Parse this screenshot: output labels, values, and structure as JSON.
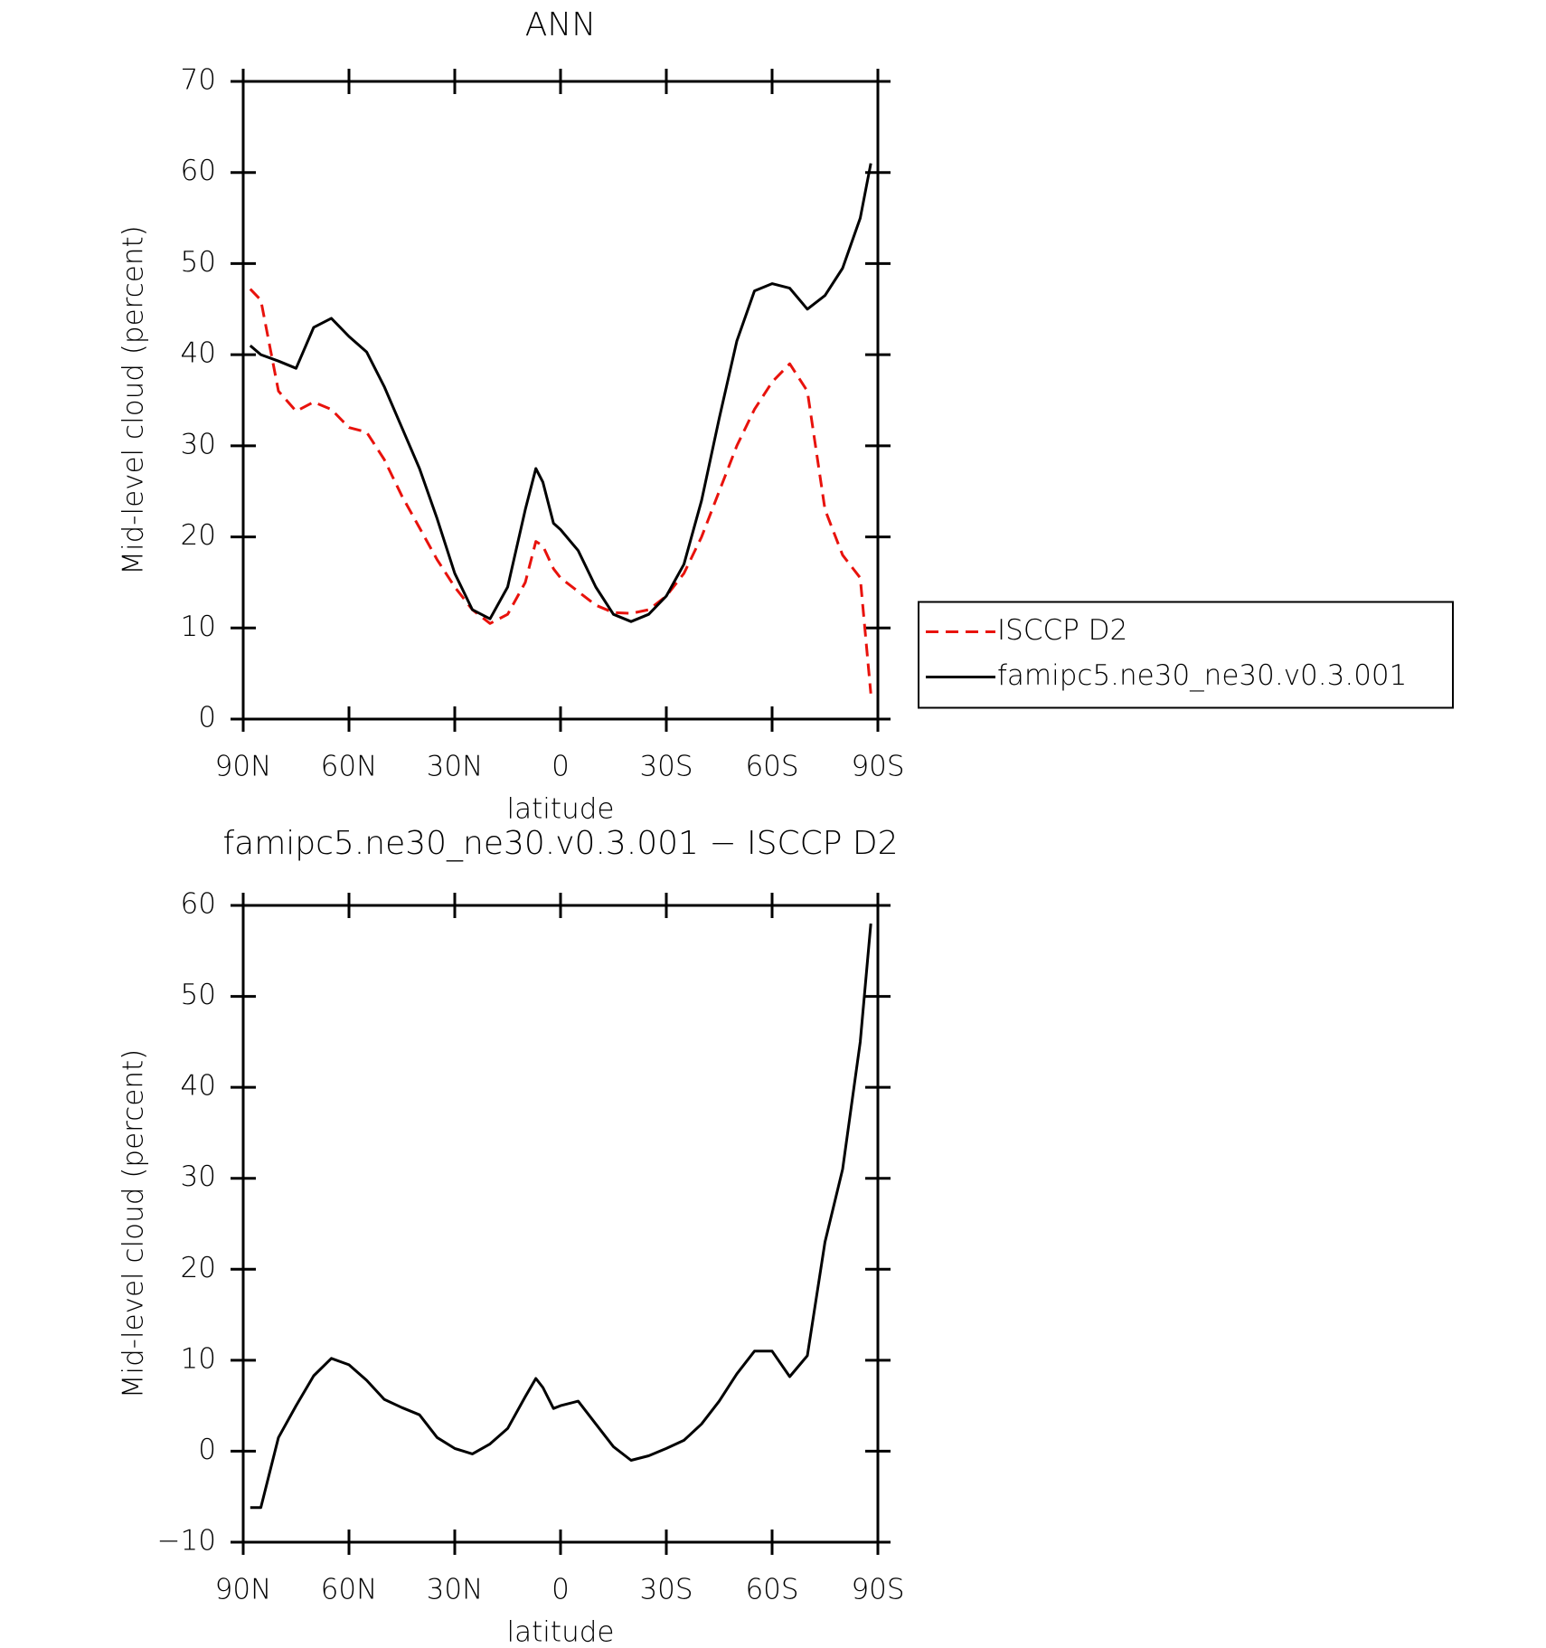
{
  "chart_data": [
    {
      "type": "line",
      "title": "ANN",
      "xlabel": "latitude",
      "ylabel": "Mid-level cloud (percent)",
      "xlim": [
        90,
        -90
      ],
      "ylim": [
        0,
        70
      ],
      "xticks": [
        {
          "value": 90,
          "label": "90N"
        },
        {
          "value": 60,
          "label": "60N"
        },
        {
          "value": 30,
          "label": "30N"
        },
        0,
        {
          "value": -30,
          "label": "30S"
        },
        {
          "value": -60,
          "label": "60S"
        },
        {
          "value": -90,
          "label": "90S"
        }
      ],
      "yticks": [
        0,
        10,
        20,
        30,
        40,
        50,
        60,
        70
      ],
      "legend": "right",
      "x": [
        88,
        85,
        80,
        75,
        70,
        65,
        60,
        55,
        50,
        45,
        40,
        35,
        30,
        25,
        20,
        15,
        10,
        7,
        5,
        2,
        0,
        -5,
        -10,
        -15,
        -20,
        -25,
        -30,
        -35,
        -40,
        -45,
        -50,
        -55,
        -60,
        -65,
        -70,
        -75,
        -80,
        -85,
        -88
      ],
      "series": [
        {
          "name": "ISCCP D2",
          "color": "#e8120c",
          "dashed": true,
          "values": [
            47.2,
            46,
            36,
            33.8,
            34.8,
            34,
            32,
            31.5,
            28.5,
            24.5,
            21,
            17.5,
            14.5,
            12,
            10.5,
            11.5,
            15,
            19.5,
            19,
            16.5,
            15.5,
            14,
            12.5,
            11.7,
            11.6,
            12,
            13.5,
            16,
            20,
            25,
            30,
            34,
            37,
            39,
            36,
            23,
            18,
            15.5,
            2.8
          ]
        },
        {
          "name": "famipc5.ne30_ne30.v0.3.001",
          "color": "#000000",
          "dashed": false,
          "values": [
            41,
            40,
            39.3,
            38.5,
            43,
            44,
            42,
            40.3,
            36.5,
            32,
            27.5,
            22,
            16,
            12,
            11,
            14.5,
            23,
            27.5,
            26,
            21.5,
            20.8,
            18.5,
            14.5,
            11.5,
            10.7,
            11.5,
            13.5,
            17,
            24,
            33,
            41.5,
            47,
            47.8,
            47.3,
            45,
            46.5,
            49.5,
            55,
            61
          ]
        }
      ]
    },
    {
      "type": "line",
      "title": "famipc5.ne30_ne30.v0.3.001 − ISCCP D2",
      "xlabel": "latitude",
      "ylabel": "Mid-level cloud (percent)",
      "xlim": [
        90,
        -90
      ],
      "ylim": [
        -10,
        60
      ],
      "xticks": [
        {
          "value": 90,
          "label": "90N"
        },
        {
          "value": 60,
          "label": "60N"
        },
        {
          "value": 30,
          "label": "30N"
        },
        0,
        {
          "value": -30,
          "label": "30S"
        },
        {
          "value": -60,
          "label": "60S"
        },
        {
          "value": -90,
          "label": "90S"
        }
      ],
      "yticks": [
        {
          "value": -10,
          "label": "−10"
        },
        0,
        10,
        20,
        30,
        40,
        50,
        60
      ],
      "x": [
        88,
        85,
        80,
        75,
        70,
        65,
        60,
        55,
        50,
        45,
        40,
        35,
        30,
        25,
        20,
        15,
        10,
        7,
        5,
        2,
        0,
        -5,
        -10,
        -15,
        -20,
        -25,
        -30,
        -35,
        -40,
        -45,
        -50,
        -55,
        -60,
        -65,
        -70,
        -75,
        -80,
        -85,
        -88
      ],
      "color": "#000000",
      "values": [
        -6.2,
        -6.2,
        1.5,
        5,
        8.3,
        10.2,
        9.5,
        7.8,
        5.7,
        4.8,
        4,
        1.5,
        0.3,
        -0.3,
        0.8,
        2.5,
        6,
        8,
        7,
        4.7,
        5,
        5.5,
        3,
        0.5,
        -1,
        -0.5,
        0.3,
        1.2,
        3,
        5.5,
        8.5,
        11,
        11,
        8.2,
        10.5,
        23,
        31,
        45,
        58
      ]
    }
  ]
}
